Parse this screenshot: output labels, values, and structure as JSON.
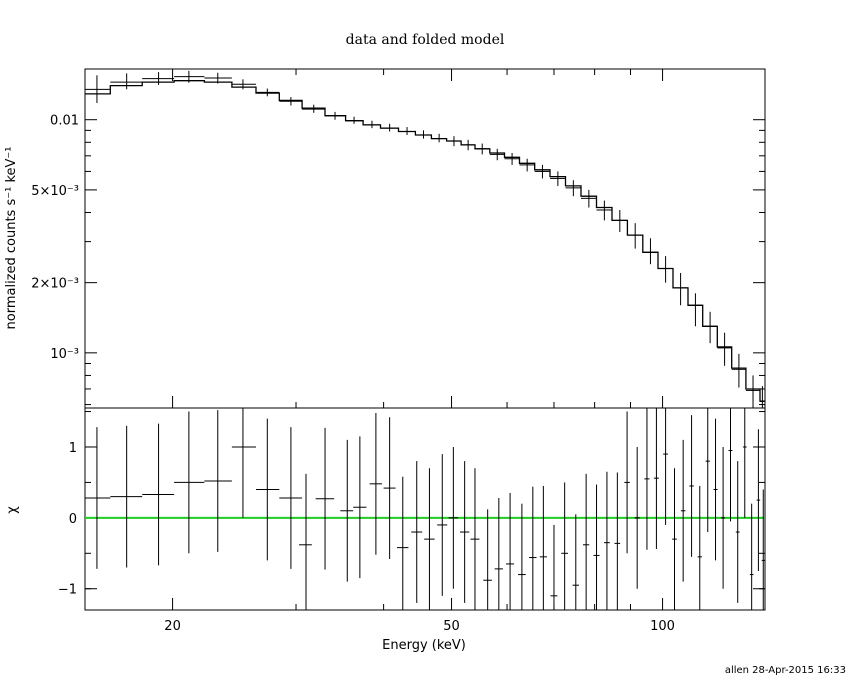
{
  "chart_data": [
    {
      "type": "line",
      "title": "data and folded model",
      "xlabel": "Energy (keV)",
      "ylabel": "normalized counts s⁻¹ keV⁻¹",
      "xscale": "log",
      "yscale": "log",
      "xlim": [
        15,
        140
      ],
      "ylim": [
        0.00058,
        0.0165
      ],
      "y_ticks": [
        {
          "value": 0.01,
          "label": "0.01"
        },
        {
          "value": 0.005,
          "label": "5×10⁻³"
        },
        {
          "value": 0.002,
          "label": "2×10⁻³"
        },
        {
          "value": 0.001,
          "label": "10⁻³"
        }
      ],
      "series": [
        {
          "kind": "data",
          "points": [
            {
              "x": 15.6,
              "xlo": 15.0,
              "xhi": 16.3,
              "y": 0.0135,
              "ylo": 0.0118,
              "yhi": 0.0155
            },
            {
              "x": 17.2,
              "xlo": 16.3,
              "xhi": 18.1,
              "y": 0.0145,
              "ylo": 0.0135,
              "yhi": 0.0158
            },
            {
              "x": 19.1,
              "xlo": 18.1,
              "xhi": 20.1,
              "y": 0.015,
              "ylo": 0.0141,
              "yhi": 0.016
            },
            {
              "x": 21.1,
              "xlo": 20.1,
              "xhi": 22.2,
              "y": 0.0153,
              "ylo": 0.0144,
              "yhi": 0.0162
            },
            {
              "x": 23.2,
              "xlo": 22.2,
              "xhi": 24.3,
              "y": 0.0151,
              "ylo": 0.0143,
              "yhi": 0.0159
            },
            {
              "x": 25.2,
              "xlo": 24.3,
              "xhi": 26.3,
              "y": 0.0142,
              "ylo": 0.0135,
              "yhi": 0.0149
            },
            {
              "x": 27.3,
              "xlo": 26.3,
              "xhi": 28.4,
              "y": 0.0131,
              "ylo": 0.0126,
              "yhi": 0.0136
            },
            {
              "x": 29.5,
              "xlo": 28.4,
              "xhi": 30.6,
              "y": 0.012,
              "ylo": 0.0115,
              "yhi": 0.0125
            },
            {
              "x": 31.8,
              "xlo": 30.6,
              "xhi": 33.0,
              "y": 0.0111,
              "ylo": 0.0107,
              "yhi": 0.0116
            },
            {
              "x": 34.1,
              "xlo": 33.0,
              "xhi": 35.3,
              "y": 0.0104,
              "ylo": 0.01,
              "yhi": 0.0108
            },
            {
              "x": 36.3,
              "xlo": 35.3,
              "xhi": 37.4,
              "y": 0.0099,
              "ylo": 0.0096,
              "yhi": 0.0103
            },
            {
              "x": 38.5,
              "xlo": 37.4,
              "xhi": 39.6,
              "y": 0.0095,
              "ylo": 0.0092,
              "yhi": 0.0099
            },
            {
              "x": 40.8,
              "xlo": 39.6,
              "xhi": 42.0,
              "y": 0.0092,
              "ylo": 0.0089,
              "yhi": 0.0096
            },
            {
              "x": 43.2,
              "xlo": 42.0,
              "xhi": 44.4,
              "y": 0.0089,
              "ylo": 0.0086,
              "yhi": 0.0093
            },
            {
              "x": 45.6,
              "xlo": 44.4,
              "xhi": 46.8,
              "y": 0.0086,
              "ylo": 0.0083,
              "yhi": 0.009
            },
            {
              "x": 48.0,
              "xlo": 46.8,
              "xhi": 49.2,
              "y": 0.0083,
              "ylo": 0.008,
              "yhi": 0.0087
            },
            {
              "x": 50.4,
              "xlo": 49.2,
              "xhi": 51.6,
              "y": 0.0081,
              "ylo": 0.0077,
              "yhi": 0.0085
            },
            {
              "x": 52.8,
              "xlo": 51.6,
              "xhi": 54.0,
              "y": 0.0078,
              "ylo": 0.0074,
              "yhi": 0.0082
            },
            {
              "x": 55.3,
              "xlo": 54.0,
              "xhi": 56.7,
              "y": 0.0075,
              "ylo": 0.0071,
              "yhi": 0.0079
            },
            {
              "x": 58.1,
              "xlo": 56.7,
              "xhi": 59.5,
              "y": 0.0071,
              "ylo": 0.0067,
              "yhi": 0.0075
            },
            {
              "x": 61.0,
              "xlo": 59.5,
              "xhi": 62.5,
              "y": 0.0068,
              "ylo": 0.0064,
              "yhi": 0.0072
            },
            {
              "x": 64.1,
              "xlo": 62.5,
              "xhi": 65.7,
              "y": 0.0064,
              "ylo": 0.006,
              "yhi": 0.0068
            },
            {
              "x": 67.4,
              "xlo": 65.7,
              "xhi": 69.1,
              "y": 0.006,
              "ylo": 0.0056,
              "yhi": 0.0064
            },
            {
              "x": 70.9,
              "xlo": 69.1,
              "xhi": 72.7,
              "y": 0.0056,
              "ylo": 0.0052,
              "yhi": 0.006
            },
            {
              "x": 74.6,
              "xlo": 72.7,
              "xhi": 76.5,
              "y": 0.0051,
              "ylo": 0.0047,
              "yhi": 0.0055
            },
            {
              "x": 78.5,
              "xlo": 76.5,
              "xhi": 80.5,
              "y": 0.0046,
              "ylo": 0.0042,
              "yhi": 0.005
            },
            {
              "x": 82.6,
              "xlo": 80.5,
              "xhi": 84.7,
              "y": 0.0041,
              "ylo": 0.0037,
              "yhi": 0.0045
            },
            {
              "x": 86.9,
              "xlo": 84.7,
              "xhi": 89.1,
              "y": 0.0037,
              "ylo": 0.0033,
              "yhi": 0.0041
            },
            {
              "x": 91.4,
              "xlo": 89.1,
              "xhi": 93.7,
              "y": 0.0032,
              "ylo": 0.0028,
              "yhi": 0.0036
            },
            {
              "x": 96.1,
              "xlo": 93.7,
              "xhi": 98.5,
              "y": 0.0027,
              "ylo": 0.0024,
              "yhi": 0.0031
            },
            {
              "x": 101.0,
              "xlo": 98.5,
              "xhi": 103.5,
              "y": 0.0023,
              "ylo": 0.002,
              "yhi": 0.0026
            },
            {
              "x": 106.1,
              "xlo": 103.5,
              "xhi": 108.7,
              "y": 0.0019,
              "ylo": 0.0016,
              "yhi": 0.0022
            },
            {
              "x": 111.4,
              "xlo": 108.7,
              "xhi": 114.1,
              "y": 0.0016,
              "ylo": 0.0013,
              "yhi": 0.0018
            },
            {
              "x": 116.9,
              "xlo": 114.1,
              "xhi": 119.7,
              "y": 0.0013,
              "ylo": 0.0011,
              "yhi": 0.0015
            },
            {
              "x": 122.6,
              "xlo": 119.7,
              "xhi": 125.5,
              "y": 0.00105,
              "ylo": 0.00088,
              "yhi": 0.00122
            },
            {
              "x": 128.5,
              "xlo": 125.5,
              "xhi": 131.5,
              "y": 0.00085,
              "ylo": 0.00071,
              "yhi": 0.00099
            },
            {
              "x": 134.6,
              "xlo": 131.5,
              "xhi": 137.7,
              "y": 0.00069,
              "ylo": 0.00058,
              "yhi": 0.0008
            },
            {
              "x": 138.8,
              "xlo": 137.7,
              "xhi": 140.0,
              "y": 0.00062,
              "ylo": 0.00058,
              "yhi": 0.00072
            }
          ]
        },
        {
          "kind": "model",
          "steps": [
            {
              "xlo": 15.0,
              "xhi": 16.3,
              "y": 0.0129
            },
            {
              "xlo": 16.3,
              "xhi": 18.1,
              "y": 0.014
            },
            {
              "xlo": 18.1,
              "xhi": 20.1,
              "y": 0.0145
            },
            {
              "xlo": 20.1,
              "xhi": 22.2,
              "y": 0.0147
            },
            {
              "xlo": 22.2,
              "xhi": 24.3,
              "y": 0.0145
            },
            {
              "xlo": 24.3,
              "xhi": 26.3,
              "y": 0.0138
            },
            {
              "xlo": 26.3,
              "xhi": 28.4,
              "y": 0.013
            },
            {
              "xlo": 28.4,
              "xhi": 30.6,
              "y": 0.0121
            },
            {
              "xlo": 30.6,
              "xhi": 33.0,
              "y": 0.0112
            },
            {
              "xlo": 33.0,
              "xhi": 35.3,
              "y": 0.0104
            },
            {
              "xlo": 35.3,
              "xhi": 37.4,
              "y": 0.0099
            },
            {
              "xlo": 37.4,
              "xhi": 39.6,
              "y": 0.0095
            },
            {
              "xlo": 39.6,
              "xhi": 42.0,
              "y": 0.0092
            },
            {
              "xlo": 42.0,
              "xhi": 44.4,
              "y": 0.0089
            },
            {
              "xlo": 44.4,
              "xhi": 46.8,
              "y": 0.0086
            },
            {
              "xlo": 46.8,
              "xhi": 49.2,
              "y": 0.0083
            },
            {
              "xlo": 49.2,
              "xhi": 51.6,
              "y": 0.0081
            },
            {
              "xlo": 51.6,
              "xhi": 54.0,
              "y": 0.0078
            },
            {
              "xlo": 54.0,
              "xhi": 56.7,
              "y": 0.0075
            },
            {
              "xlo": 56.7,
              "xhi": 59.5,
              "y": 0.0072
            },
            {
              "xlo": 59.5,
              "xhi": 62.5,
              "y": 0.0069
            },
            {
              "xlo": 62.5,
              "xhi": 65.7,
              "y": 0.0065
            },
            {
              "xlo": 65.7,
              "xhi": 69.1,
              "y": 0.0061
            },
            {
              "xlo": 69.1,
              "xhi": 72.7,
              "y": 0.0057
            },
            {
              "xlo": 72.7,
              "xhi": 76.5,
              "y": 0.0052
            },
            {
              "xlo": 76.5,
              "xhi": 80.5,
              "y": 0.0047
            },
            {
              "xlo": 80.5,
              "xhi": 84.7,
              "y": 0.0042
            },
            {
              "xlo": 84.7,
              "xhi": 89.1,
              "y": 0.0037
            },
            {
              "xlo": 89.1,
              "xhi": 93.7,
              "y": 0.0032
            },
            {
              "xlo": 93.7,
              "xhi": 98.5,
              "y": 0.0027
            },
            {
              "xlo": 98.5,
              "xhi": 103.5,
              "y": 0.0023
            },
            {
              "xlo": 103.5,
              "xhi": 108.7,
              "y": 0.0019
            },
            {
              "xlo": 108.7,
              "xhi": 114.1,
              "y": 0.0016
            },
            {
              "xlo": 114.1,
              "xhi": 119.7,
              "y": 0.0013
            },
            {
              "xlo": 119.7,
              "xhi": 125.5,
              "y": 0.00106
            },
            {
              "xlo": 125.5,
              "xhi": 131.5,
              "y": 0.00086
            },
            {
              "xlo": 131.5,
              "xhi": 137.7,
              "y": 0.0007
            },
            {
              "xlo": 137.7,
              "xhi": 140.0,
              "y": 0.00062
            }
          ]
        }
      ]
    },
    {
      "type": "scatter",
      "xlabel": "Energy (keV)",
      "ylabel": "χ",
      "xscale": "log",
      "xlim": [
        15,
        140
      ],
      "ylim": [
        -1.3,
        1.55
      ],
      "y_ticks": [
        {
          "value": 1,
          "label": "1"
        },
        {
          "value": 0,
          "label": "0"
        },
        {
          "value": -1,
          "label": "−1"
        }
      ],
      "x_ticks": [
        {
          "value": 20,
          "label": "20"
        },
        {
          "value": 50,
          "label": "50"
        },
        {
          "value": 100,
          "label": "100"
        }
      ],
      "zero_line_color": "#22cc22",
      "points": [
        {
          "x": 15.6,
          "xlo": 15.0,
          "xhi": 16.3,
          "y": 0.28
        },
        {
          "x": 17.2,
          "xlo": 16.3,
          "xhi": 18.1,
          "y": 0.3
        },
        {
          "x": 19.1,
          "xlo": 18.1,
          "xhi": 20.1,
          "y": 0.33
        },
        {
          "x": 21.1,
          "xlo": 20.1,
          "xhi": 22.2,
          "y": 0.5
        },
        {
          "x": 23.2,
          "xlo": 22.2,
          "xhi": 24.3,
          "y": 0.52
        },
        {
          "x": 25.2,
          "xlo": 24.3,
          "xhi": 26.3,
          "y": 1.0
        },
        {
          "x": 27.3,
          "xlo": 26.3,
          "xhi": 28.4,
          "y": 0.4
        },
        {
          "x": 29.5,
          "xlo": 28.4,
          "xhi": 30.6,
          "y": 0.28
        },
        {
          "x": 31.0,
          "xlo": 30.3,
          "xhi": 31.6,
          "y": -0.38
        },
        {
          "x": 33.0,
          "xlo": 32.0,
          "xhi": 34.0,
          "y": 0.27
        },
        {
          "x": 35.5,
          "xlo": 34.7,
          "xhi": 36.2,
          "y": 0.1
        },
        {
          "x": 37.0,
          "xlo": 36.2,
          "xhi": 37.8,
          "y": 0.15
        },
        {
          "x": 39.0,
          "xlo": 38.2,
          "xhi": 39.8,
          "y": 0.48
        },
        {
          "x": 40.8,
          "xlo": 40.0,
          "xhi": 41.6,
          "y": 0.42
        },
        {
          "x": 42.6,
          "xlo": 41.8,
          "xhi": 43.4,
          "y": -0.42
        },
        {
          "x": 44.6,
          "xlo": 43.8,
          "xhi": 45.4,
          "y": -0.2
        },
        {
          "x": 46.5,
          "xlo": 45.7,
          "xhi": 47.3,
          "y": -0.3
        },
        {
          "x": 48.5,
          "xlo": 47.7,
          "xhi": 49.3,
          "y": -0.1
        },
        {
          "x": 50.3,
          "xlo": 49.5,
          "xhi": 51.1,
          "y": 0.0
        },
        {
          "x": 52.2,
          "xlo": 51.4,
          "xhi": 53.0,
          "y": -0.2
        },
        {
          "x": 54.0,
          "xlo": 53.2,
          "xhi": 54.8,
          "y": -0.3
        },
        {
          "x": 56.3,
          "xlo": 55.5,
          "xhi": 57.1,
          "y": -0.88
        },
        {
          "x": 58.4,
          "xlo": 57.6,
          "xhi": 59.2,
          "y": -0.72
        },
        {
          "x": 60.6,
          "xlo": 59.8,
          "xhi": 61.4,
          "y": -0.65
        },
        {
          "x": 63.0,
          "xlo": 62.2,
          "xhi": 63.8,
          "y": -0.8
        },
        {
          "x": 65.3,
          "xlo": 64.5,
          "xhi": 66.1,
          "y": -0.56
        },
        {
          "x": 67.6,
          "xlo": 66.8,
          "xhi": 68.4,
          "y": -0.55
        },
        {
          "x": 70.0,
          "xlo": 69.2,
          "xhi": 70.8,
          "y": -1.1
        },
        {
          "x": 72.5,
          "xlo": 71.7,
          "xhi": 73.3,
          "y": -0.5
        },
        {
          "x": 75.2,
          "xlo": 74.4,
          "xhi": 76.0,
          "y": -0.95
        },
        {
          "x": 77.8,
          "xlo": 77.0,
          "xhi": 78.6,
          "y": -0.38
        },
        {
          "x": 80.5,
          "xlo": 79.7,
          "xhi": 81.3,
          "y": -0.53
        },
        {
          "x": 83.3,
          "xlo": 82.5,
          "xhi": 84.1,
          "y": -0.35
        },
        {
          "x": 86.2,
          "xlo": 85.4,
          "xhi": 87.0,
          "y": -0.36
        },
        {
          "x": 89.0,
          "xlo": 88.2,
          "xhi": 89.8,
          "y": 0.5
        },
        {
          "x": 92.0,
          "xlo": 91.2,
          "xhi": 92.8,
          "y": 0.0
        },
        {
          "x": 95.0,
          "xlo": 94.2,
          "xhi": 95.8,
          "y": 0.55
        },
        {
          "x": 98.0,
          "xlo": 97.2,
          "xhi": 98.8,
          "y": 0.56
        },
        {
          "x": 101.0,
          "xlo": 100.2,
          "xhi": 101.8,
          "y": 0.9
        },
        {
          "x": 104.0,
          "xlo": 103.2,
          "xhi": 104.8,
          "y": -0.3
        },
        {
          "x": 107.0,
          "xlo": 106.2,
          "xhi": 107.8,
          "y": 0.1
        },
        {
          "x": 110.0,
          "xlo": 109.2,
          "xhi": 110.8,
          "y": 0.45
        },
        {
          "x": 113.0,
          "xlo": 112.2,
          "xhi": 113.8,
          "y": -0.55
        },
        {
          "x": 116.0,
          "xlo": 115.2,
          "xhi": 116.8,
          "y": 0.8
        },
        {
          "x": 119.0,
          "xlo": 118.2,
          "xhi": 119.8,
          "y": 0.4
        },
        {
          "x": 122.0,
          "xlo": 121.2,
          "xhi": 122.8,
          "y": 0.0
        },
        {
          "x": 125.0,
          "xlo": 124.2,
          "xhi": 125.8,
          "y": 0.95
        },
        {
          "x": 128.0,
          "xlo": 127.2,
          "xhi": 128.8,
          "y": -0.2
        },
        {
          "x": 131.0,
          "xlo": 130.2,
          "xhi": 131.8,
          "y": 1.0
        },
        {
          "x": 134.0,
          "xlo": 133.2,
          "xhi": 134.8,
          "y": -0.8
        },
        {
          "x": 137.0,
          "xlo": 136.2,
          "xhi": 137.8,
          "y": 0.25
        },
        {
          "x": 139.2,
          "xlo": 138.5,
          "xhi": 140.0,
          "y": -0.6
        }
      ]
    }
  ],
  "footer": {
    "stamp": "allen 28-Apr-2015 16:33"
  }
}
